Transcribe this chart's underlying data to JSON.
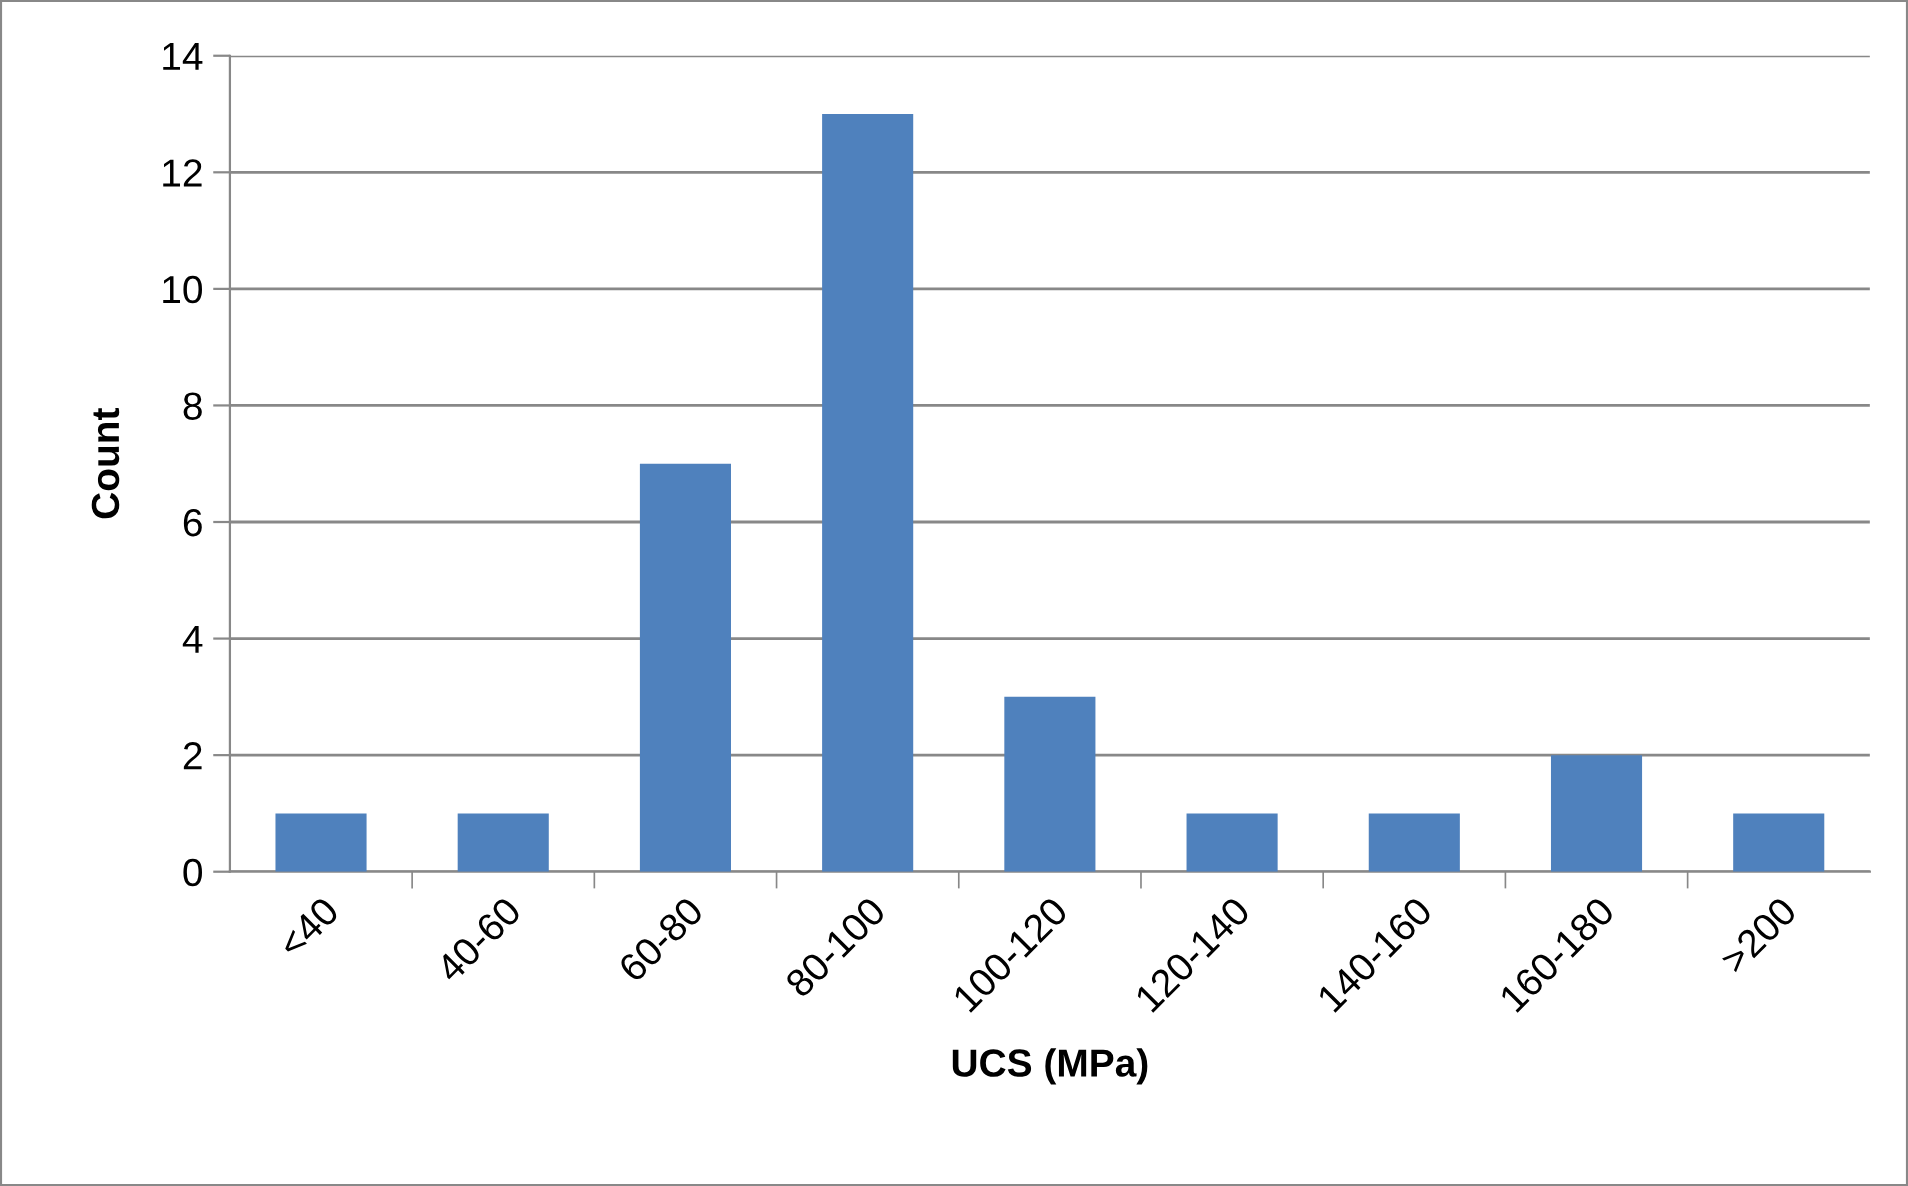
{
  "chart_data": {
    "type": "bar",
    "xlabel": "UCS (MPa)",
    "ylabel": "Count",
    "categories": [
      "<40",
      "40-60",
      "60-80",
      "80-100",
      "100-120",
      "120-140",
      "140-160",
      "160-180",
      ">200"
    ],
    "series": [
      {
        "color": "#4f81bd",
        "values": [
          1,
          1,
          7,
          13,
          3,
          1,
          1,
          2,
          1
        ]
      }
    ],
    "ylim": [
      0,
      14
    ],
    "yticks": [
      0,
      2,
      4,
      6,
      8,
      10,
      12,
      14
    ],
    "grid": "y",
    "legend": false
  }
}
